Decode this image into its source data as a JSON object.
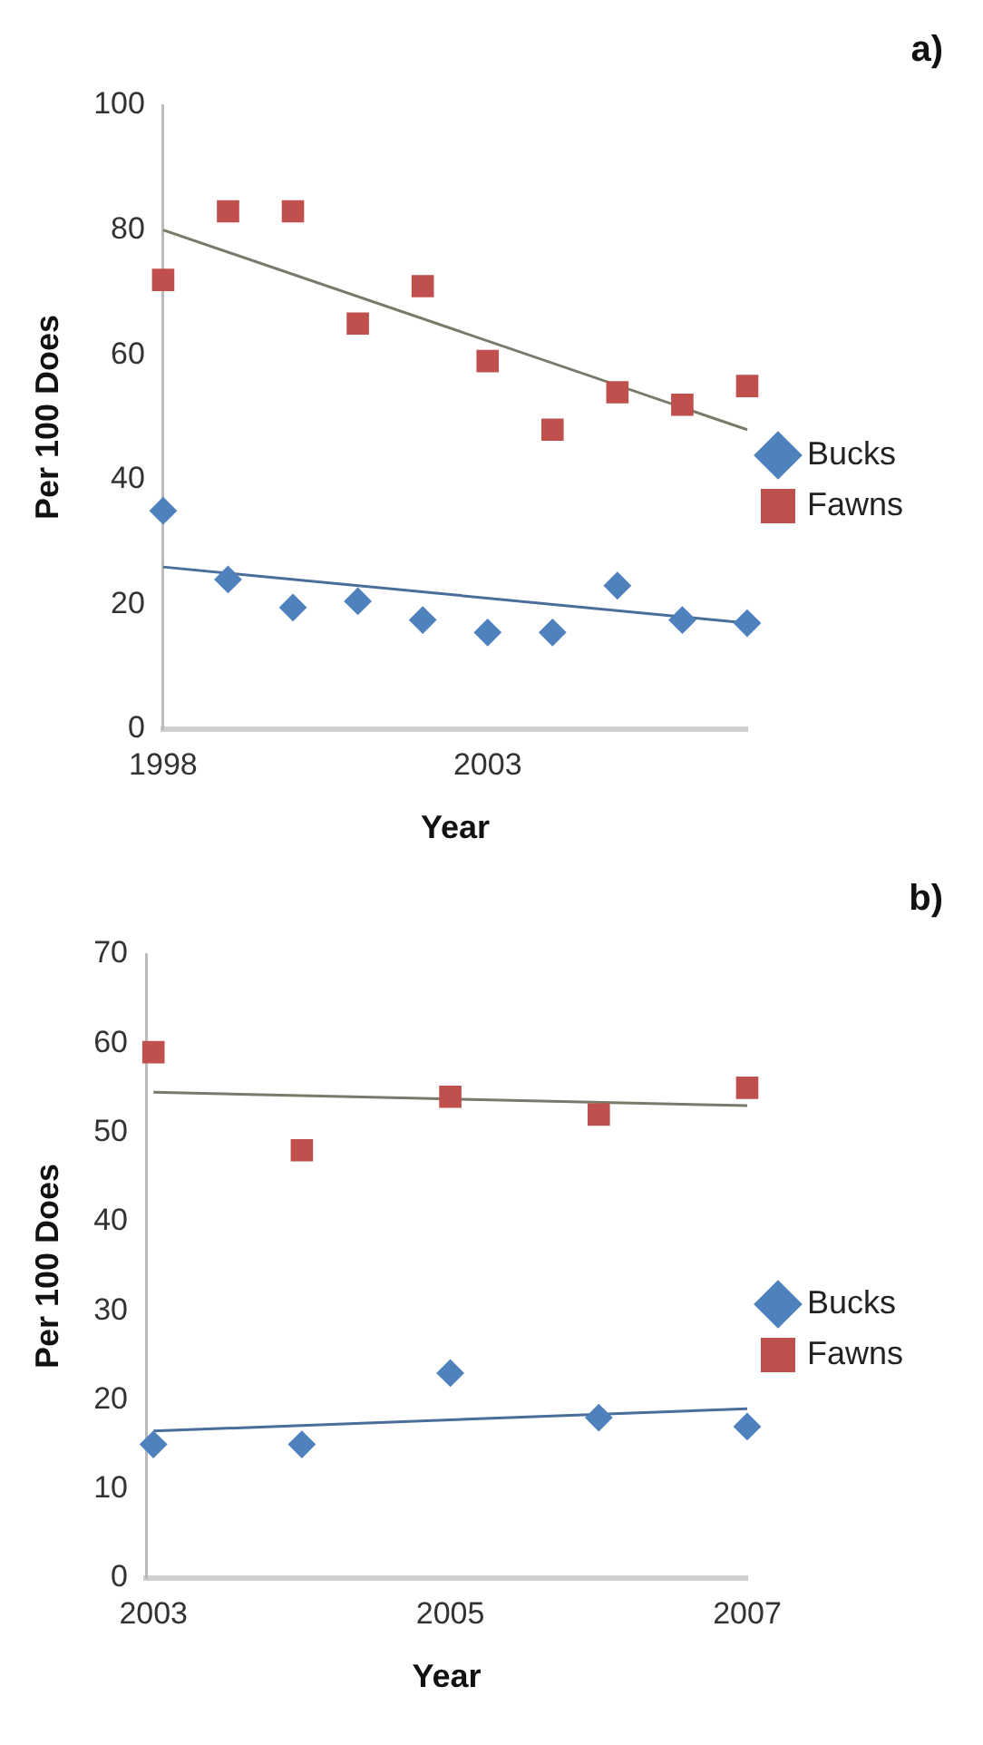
{
  "chart_data": [
    {
      "type": "scatter",
      "xlabel": "Year",
      "ylabel": "Per 100 Does",
      "annotations": [
        "a)"
      ],
      "x": [
        1998,
        1999,
        2000,
        2001,
        2002,
        2003,
        2004,
        2005,
        2006,
        2007
      ],
      "xlim": [
        1998,
        2007
      ],
      "xticks": [
        1998,
        2003
      ],
      "ylim": [
        0,
        100
      ],
      "yticks": [
        0,
        20,
        40,
        60,
        80,
        100
      ],
      "grid": false,
      "legend": "right",
      "series": [
        {
          "name": "Bucks",
          "color": "#4f81bd",
          "marker": "diamond",
          "values": [
            35,
            24,
            19.5,
            20.5,
            17.5,
            15.5,
            15.5,
            23,
            17.5,
            17
          ]
        },
        {
          "name": "Fawns",
          "color": "#c0504d",
          "marker": "square",
          "values": [
            72,
            83,
            83,
            65,
            71,
            59,
            48,
            54,
            52,
            55
          ]
        },
        {
          "type": "line",
          "color": "#4a6e9a",
          "marker": "none",
          "x": [
            1998,
            2007
          ],
          "values": [
            26,
            17
          ]
        },
        {
          "type": "line",
          "color": "#7a7a6a",
          "marker": "none",
          "x": [
            1998,
            2007
          ],
          "values": [
            80,
            48
          ]
        }
      ]
    },
    {
      "type": "scatter",
      "xlabel": "Year",
      "ylabel": "Per 100 Does",
      "annotations": [
        "b)"
      ],
      "x": [
        2003,
        2004,
        2005,
        2006,
        2007
      ],
      "xlim": [
        2002.95,
        2007
      ],
      "xticks": [
        2003,
        2005,
        2007
      ],
      "ylim": [
        0,
        70
      ],
      "yticks": [
        0,
        10,
        20,
        30,
        40,
        50,
        60,
        70
      ],
      "grid": false,
      "legend": "right",
      "series": [
        {
          "name": "Bucks",
          "color": "#4f81bd",
          "marker": "diamond",
          "values": [
            15,
            15,
            23,
            18,
            17
          ]
        },
        {
          "name": "Fawns",
          "color": "#c0504d",
          "marker": "square",
          "values": [
            59,
            48,
            54,
            52,
            55
          ]
        },
        {
          "type": "line",
          "color": "#4a6e9a",
          "marker": "none",
          "x": [
            2003,
            2007
          ],
          "values": [
            16.5,
            19
          ]
        },
        {
          "type": "line",
          "color": "#7a7a6a",
          "marker": "none",
          "x": [
            2003,
            2007
          ],
          "values": [
            54.5,
            53
          ]
        }
      ]
    }
  ]
}
